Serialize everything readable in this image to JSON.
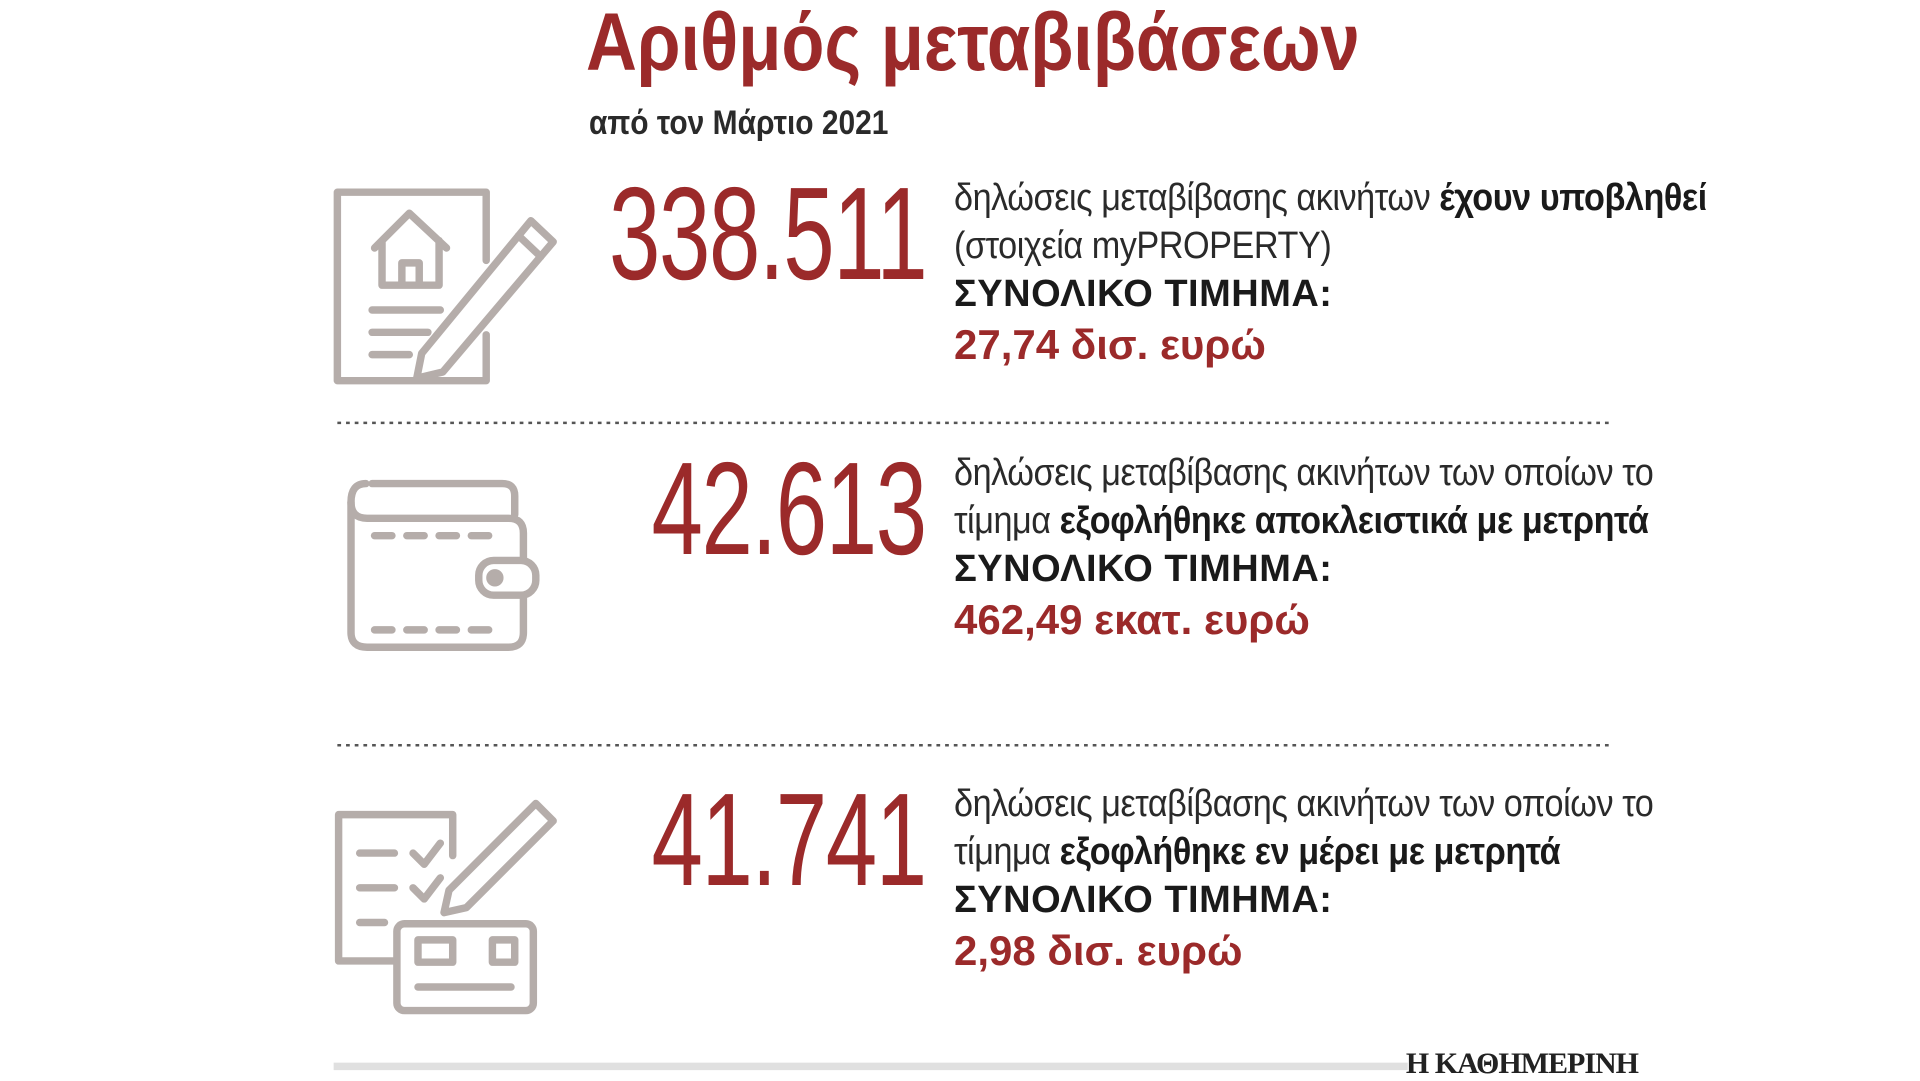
{
  "header": {
    "title": "Αριθμός μεταβιβάσεων",
    "subtitle": "από τον Μάρτιο 2021"
  },
  "items": [
    {
      "number": "338.511",
      "description": [
        {
          "text": "δηλώσεις μεταβίβασης ακινήτων ",
          "bold": false
        },
        {
          "text": "έχουν υποβληθεί",
          "bold": true
        },
        {
          "text": " (στοιχεία myPROPERTY)",
          "bold": false
        }
      ],
      "total_label": "ΣΥΝΟΛΙΚΟ ΤΙΜΗΜΑ:",
      "total_value": "27,74 δισ. ευρώ"
    },
    {
      "number": "42.613",
      "description": [
        {
          "text": "δηλώσεις μεταβίβασης ακινήτων των οποίων το τίμημα ",
          "bold": false
        },
        {
          "text": "εξοφλήθηκε αποκλειστικά με μετρητά",
          "bold": true
        }
      ],
      "total_label": "ΣΥΝΟΛΙΚΟ ΤΙΜΗΜΑ:",
      "total_value": "462,49 εκατ. ευρώ"
    },
    {
      "number": "41.741",
      "description": [
        {
          "text": "δηλώσεις μεταβίβασης ακινήτων των οποίων το τίμημα ",
          "bold": false
        },
        {
          "text": "εξοφλήθηκε εν μέρει με μετρητά",
          "bold": true
        }
      ],
      "total_label": "ΣΥΝΟΛΙΚΟ ΤΙΜΗΜΑ:",
      "total_value": "2,98 δισ. ευρώ"
    }
  ],
  "footer": {
    "brand": "Η ΚΑΘΗΜΕΡΙΝΗ"
  }
}
